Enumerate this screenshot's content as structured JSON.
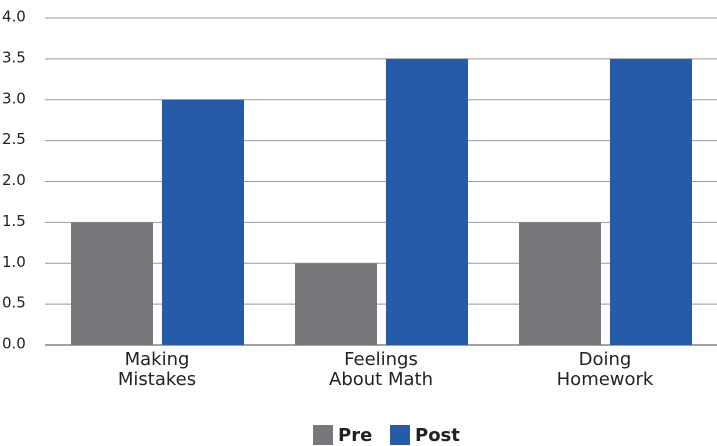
{
  "chart_data": {
    "type": "bar",
    "categories": [
      "Making\nMistakes",
      "Feelings\nAbout Math",
      "Doing\nHomework"
    ],
    "series": [
      {
        "name": "Pre",
        "color": "#77787b",
        "values": [
          1.5,
          1.0,
          1.5
        ]
      },
      {
        "name": "Post",
        "color": "#255ba8",
        "values": [
          3.0,
          3.5,
          3.5
        ]
      }
    ],
    "ylim": [
      0,
      4
    ],
    "yticks": [
      {
        "value": 0,
        "label": "0.0"
      },
      0.5,
      {
        "value": 1,
        "label": "1.0"
      },
      1.5,
      {
        "value": 2,
        "label": "2.0"
      },
      2.5,
      {
        "value": 3,
        "label": "3.0"
      },
      3.5,
      {
        "value": 4,
        "label": "4.0"
      }
    ],
    "grid": true,
    "legend": "bottom"
  }
}
